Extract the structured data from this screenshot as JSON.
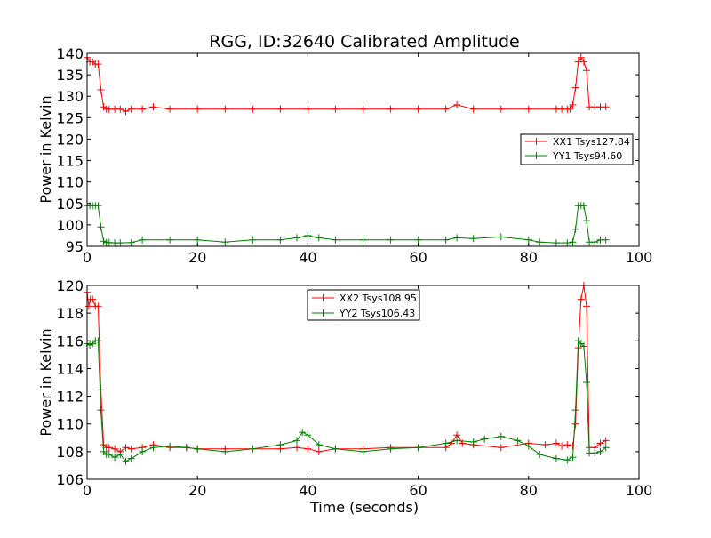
{
  "chart_data": [
    {
      "type": "line",
      "title": "RGG, ID:32640 Calibrated Amplitude",
      "xlabel": "",
      "ylabel": "Power in Kelvin",
      "xlim": [
        0,
        100
      ],
      "ylim": [
        95,
        140
      ],
      "x_ticks": [
        "0",
        "20",
        "40",
        "60",
        "80",
        "100"
      ],
      "y_ticks": [
        "95",
        "100",
        "105",
        "110",
        "115",
        "120",
        "125",
        "130",
        "135",
        "140"
      ],
      "legend_position": "center-right",
      "grid": false,
      "series": [
        {
          "name": "XX1 Tsys127.84",
          "color": "#ff0000",
          "marker": "plus",
          "x": [
            0,
            0.5,
            1,
            1.5,
            2,
            2.5,
            3,
            3.5,
            4,
            5,
            6,
            7,
            8,
            10,
            12,
            15,
            20,
            25,
            30,
            35,
            40,
            45,
            50,
            55,
            60,
            65,
            67,
            70,
            75,
            80,
            85,
            86,
            87,
            87.5,
            88,
            88.5,
            89,
            89.5,
            90,
            90.5,
            91,
            92,
            93,
            94
          ],
          "y": [
            139,
            138,
            138,
            137.5,
            137.5,
            131.5,
            127.5,
            127,
            127,
            127,
            127,
            126.5,
            127,
            127,
            127.5,
            127,
            127,
            127,
            127,
            127,
            127,
            127,
            127,
            127,
            127,
            127,
            128,
            127,
            127,
            127,
            127,
            127,
            127,
            127,
            128,
            132,
            138,
            139,
            138,
            136,
            127.5,
            127.5,
            127.5,
            127.5
          ]
        },
        {
          "name": "YY1 Tsys94.60",
          "color": "#008000",
          "marker": "plus",
          "x": [
            0,
            0.5,
            1,
            1.5,
            2,
            2.5,
            3,
            3.5,
            4,
            5,
            6,
            8,
            10,
            15,
            20,
            25,
            30,
            35,
            38,
            40,
            42,
            45,
            50,
            55,
            60,
            65,
            67,
            70,
            75,
            80,
            82,
            85,
            87,
            88,
            88.5,
            89,
            89.5,
            90,
            90.5,
            91,
            92,
            93,
            94
          ],
          "y": [
            104.5,
            104.5,
            104.5,
            104.5,
            104.5,
            99.5,
            96.2,
            95.9,
            95.9,
            95.8,
            95.8,
            95.9,
            96.5,
            96.5,
            96.5,
            96,
            96.5,
            96.5,
            97,
            97.5,
            97,
            96.5,
            96.5,
            96.5,
            96.5,
            96.5,
            97,
            96.8,
            97.2,
            96.5,
            96,
            95.8,
            95.8,
            96,
            99,
            104.5,
            104.5,
            104.5,
            101,
            96,
            96,
            96.5,
            96.5
          ]
        }
      ]
    },
    {
      "type": "line",
      "title": "",
      "xlabel": "Time (seconds)",
      "ylabel": "Power in Kelvin",
      "xlim": [
        0,
        100
      ],
      "ylim": [
        106,
        120
      ],
      "x_ticks": [
        "0",
        "20",
        "40",
        "60",
        "80",
        "100"
      ],
      "y_ticks": [
        "106",
        "108",
        "110",
        "112",
        "114",
        "116",
        "118",
        "120"
      ],
      "legend_position": "top-center",
      "grid": false,
      "series": [
        {
          "name": "XX2 Tsys108.95",
          "color": "#ff0000",
          "marker": "plus",
          "x": [
            0,
            0.3,
            0.6,
            1,
            1.5,
            2,
            2.5,
            3,
            3.5,
            4,
            5,
            6,
            7,
            8,
            10,
            12,
            15,
            18,
            20,
            25,
            30,
            35,
            38,
            40,
            42,
            45,
            50,
            55,
            60,
            65,
            66,
            67,
            68,
            70,
            75,
            80,
            83,
            85,
            86,
            87,
            88,
            88.5,
            89,
            89.5,
            90,
            90.5,
            91,
            92,
            93,
            94
          ],
          "y": [
            119.5,
            118.5,
            119,
            119,
            118.5,
            118.5,
            112.5,
            108.5,
            108.3,
            108.3,
            108.2,
            108,
            108.3,
            108.2,
            108.3,
            108.5,
            108.3,
            108.3,
            108.2,
            108.2,
            108.2,
            108.2,
            108.3,
            108.2,
            108,
            108.2,
            108.2,
            108.3,
            108.3,
            108.3,
            108.6,
            109.2,
            108.6,
            108.5,
            108.3,
            108.6,
            108.5,
            108.6,
            108.4,
            108.5,
            108.4,
            110,
            115.5,
            119,
            120,
            118.5,
            108.3,
            108.3,
            108.6,
            108.8
          ]
        },
        {
          "name": "YY2 Tsys106.43",
          "color": "#008000",
          "marker": "plus",
          "x": [
            0,
            0.5,
            1,
            1.5,
            2,
            2.5,
            3,
            3.5,
            4,
            5,
            6,
            7,
            8,
            10,
            12,
            15,
            18,
            20,
            25,
            30,
            35,
            38,
            39,
            40,
            42,
            45,
            50,
            55,
            60,
            65,
            67,
            70,
            72,
            75,
            78,
            80,
            82,
            85,
            87,
            88,
            88.5,
            89,
            89.5,
            90,
            90.5,
            91,
            92,
            93,
            94
          ],
          "y": [
            115.8,
            115.7,
            115.8,
            116,
            116,
            111,
            108,
            107.8,
            107.8,
            107.6,
            107.8,
            107.3,
            107.5,
            108,
            108.3,
            108.4,
            108.3,
            108.2,
            108,
            108.2,
            108.5,
            108.8,
            109.4,
            109.2,
            108.5,
            108.2,
            108,
            108.2,
            108.3,
            108.6,
            108.8,
            108.7,
            108.9,
            109.1,
            108.8,
            108.4,
            107.8,
            107.5,
            107.4,
            107.6,
            111,
            116,
            115.8,
            115.6,
            113,
            107.9,
            107.9,
            108,
            108.3
          ]
        }
      ]
    }
  ]
}
